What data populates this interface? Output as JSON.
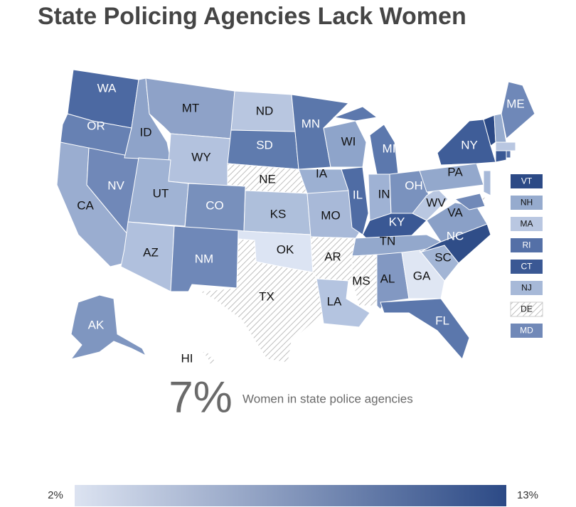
{
  "title": "State Policing Agencies Lack Women",
  "map": {
    "states": [
      {
        "label": "WA",
        "color": "#4c69a2"
      },
      {
        "label": "OR",
        "color": "#6781b3"
      },
      {
        "label": "CA",
        "color": "#9aadd0"
      },
      {
        "label": "NV",
        "color": "#7088b8"
      },
      {
        "label": "ID",
        "color": "#8ea3c9"
      },
      {
        "label": "MT",
        "color": "#8ea2c8"
      },
      {
        "label": "WY",
        "color": "#b3c2de"
      },
      {
        "label": "UT",
        "color": "#a0b3d4"
      },
      {
        "label": "AZ",
        "color": "#b0c0dd"
      },
      {
        "label": "CO",
        "color": "#7890bc"
      },
      {
        "label": "NM",
        "color": "#6f88b8"
      },
      {
        "label": "ND",
        "color": "#b8c6e0"
      },
      {
        "label": "SD",
        "color": "#5f7bae"
      },
      {
        "label": "NE",
        "pattern": "hatched"
      },
      {
        "label": "KS",
        "color": "#aebfdb"
      },
      {
        "label": "OK",
        "color": "#dce4f3"
      },
      {
        "label": "TX",
        "pattern": "hatched"
      },
      {
        "label": "MN",
        "color": "#5b77ab"
      },
      {
        "label": "IA",
        "color": "#9cb0d2"
      },
      {
        "label": "MO",
        "color": "#a8b9d8"
      },
      {
        "label": "AR",
        "pattern": "hatched"
      },
      {
        "label": "LA",
        "color": "#b4c4e0"
      },
      {
        "label": "WI",
        "color": "#8ea4ca"
      },
      {
        "label": "IL",
        "color": "#4f6ca4"
      },
      {
        "label": "MI",
        "color": "#5c78ad"
      },
      {
        "label": "IN",
        "color": "#9fb2d4"
      },
      {
        "label": "OH",
        "color": "#7a92be"
      },
      {
        "label": "KY",
        "color": "#3a5894"
      },
      {
        "label": "TN",
        "color": "#93a8cc"
      },
      {
        "label": "MS",
        "pattern": "hatched"
      },
      {
        "label": "AL",
        "color": "#8298c2"
      },
      {
        "label": "GA",
        "color": "#dfe6f3"
      },
      {
        "label": "FL",
        "color": "#5b77ac"
      },
      {
        "label": "SC",
        "color": "#a2b5d5"
      },
      {
        "label": "NC",
        "color": "#2f4d88"
      },
      {
        "label": "VA",
        "color": "#8aa0c7"
      },
      {
        "label": "WV",
        "color": "#b9c7e1"
      },
      {
        "label": "PA",
        "color": "#93a8cc"
      },
      {
        "label": "NY",
        "color": "#3f5d98"
      },
      {
        "label": "ME",
        "color": "#6f88b8"
      },
      {
        "label": "AK",
        "color": "#7f96c0"
      },
      {
        "label": "HI",
        "pattern": "hatched"
      },
      {
        "label": "VT",
        "color": "#2c4a86"
      },
      {
        "label": "NH",
        "color": "#96abce"
      },
      {
        "label": "MA",
        "color": "#b9c7e1"
      },
      {
        "label": "RI",
        "color": "#5470a7"
      },
      {
        "label": "CT",
        "color": "#3a5894"
      },
      {
        "label": "NJ",
        "color": "#a7b9d8"
      },
      {
        "label": "DE",
        "pattern": "hatched"
      },
      {
        "label": "MD",
        "color": "#7189b8"
      }
    ]
  },
  "headline": {
    "value": "7%",
    "caption": "Women in state police agencies"
  },
  "scale": {
    "min_label": "2%",
    "max_label": "13%",
    "colors": [
      "#dce3f1",
      "#2c4a86"
    ]
  }
}
